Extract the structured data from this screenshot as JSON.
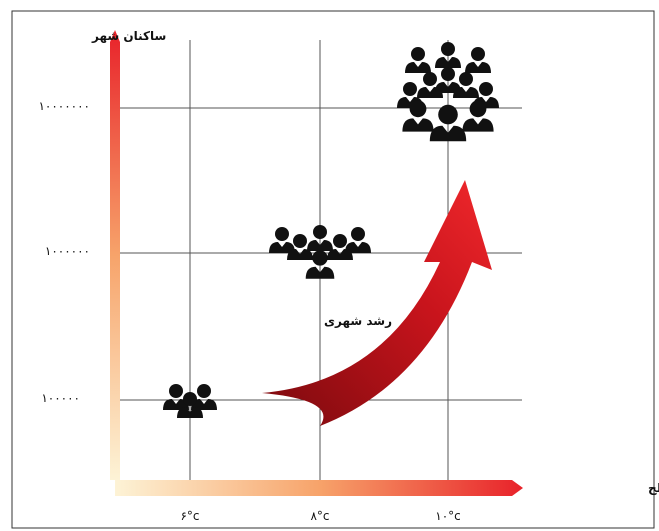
{
  "y_axis": {
    "label": "ساکنان شهر",
    "ticks": [
      "۱۰۰۰۰۰۰۰",
      "۱۰۰۰۰۰۰",
      "۱۰۰۰۰۰"
    ]
  },
  "x_axis": {
    "label": "افزایش دمای سطح",
    "ticks": [
      "۶°c",
      "۸°c",
      "۱۰°c"
    ]
  },
  "arrow_label": "رشد شهری"
}
